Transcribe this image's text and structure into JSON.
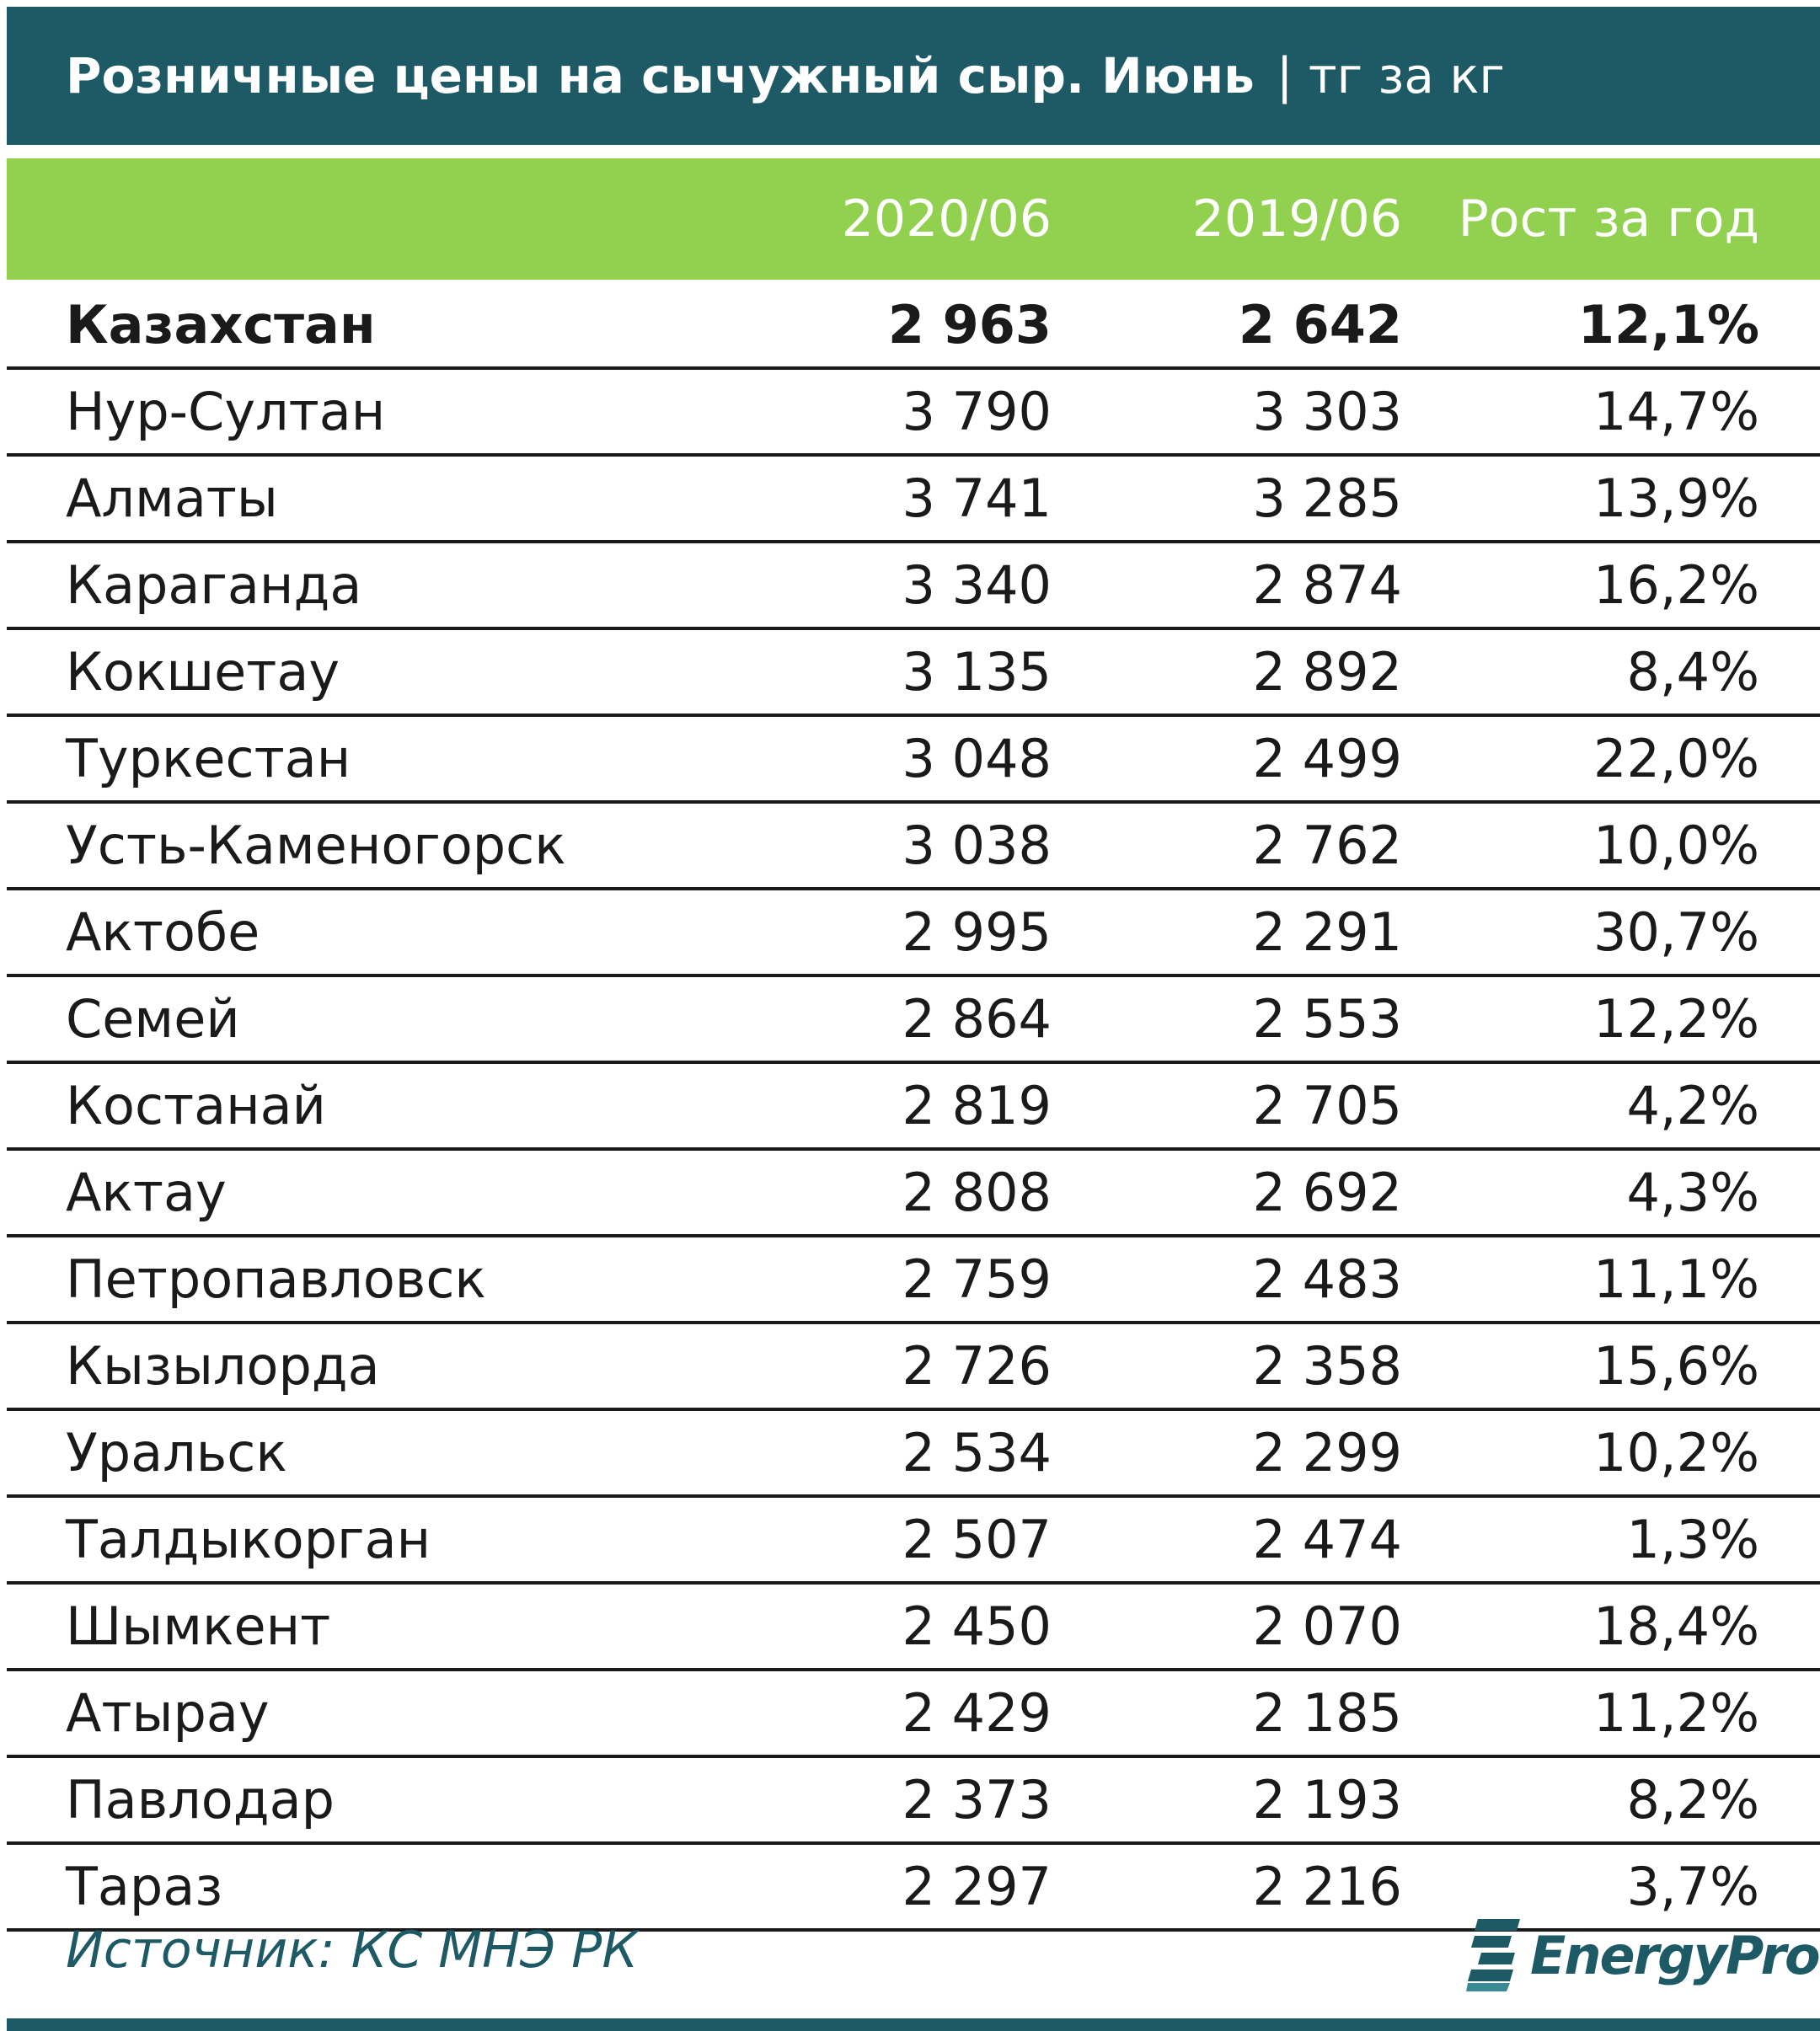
{
  "title": {
    "main": "Розничные цены на сычужный сыр. Июнь",
    "unit": "| тг за кг"
  },
  "colors": {
    "title_bg": "#1e5a66",
    "header_bg": "#92d050",
    "header_text": "#ffffff",
    "source_text": "#1e5a66"
  },
  "chart_data": {
    "type": "table",
    "columns": [
      "",
      "2020/06",
      "2019/06",
      "Рост за год"
    ],
    "rows": [
      {
        "name": "Казахстан",
        "v2020": "2 963",
        "v2019": "2 642",
        "growth": "12,1%"
      },
      {
        "name": "Нур-Султан",
        "v2020": "3 790",
        "v2019": "3 303",
        "growth": "14,7%"
      },
      {
        "name": "Алматы",
        "v2020": "3 741",
        "v2019": "3 285",
        "growth": "13,9%"
      },
      {
        "name": "Караганда",
        "v2020": "3 340",
        "v2019": "2 874",
        "growth": "16,2%"
      },
      {
        "name": "Кокшетау",
        "v2020": "3 135",
        "v2019": "2 892",
        "growth": "8,4%"
      },
      {
        "name": "Туркестан",
        "v2020": "3 048",
        "v2019": "2 499",
        "growth": "22,0%"
      },
      {
        "name": "Усть-Каменогорск",
        "v2020": "3 038",
        "v2019": "2 762",
        "growth": "10,0%"
      },
      {
        "name": "Актобе",
        "v2020": "2 995",
        "v2019": "2 291",
        "growth": "30,7%"
      },
      {
        "name": "Семей",
        "v2020": "2 864",
        "v2019": "2 553",
        "growth": "12,2%"
      },
      {
        "name": "Костанай",
        "v2020": "2 819",
        "v2019": "2 705",
        "growth": "4,2%"
      },
      {
        "name": "Актау",
        "v2020": "2 808",
        "v2019": "2 692",
        "growth": "4,3%"
      },
      {
        "name": "Петропавловск",
        "v2020": "2 759",
        "v2019": "2 483",
        "growth": "11,1%"
      },
      {
        "name": "Кызылорда",
        "v2020": "2 726",
        "v2019": "2 358",
        "growth": "15,6%"
      },
      {
        "name": "Уральск",
        "v2020": "2 534",
        "v2019": "2 299",
        "growth": "10,2%"
      },
      {
        "name": "Талдыкорган",
        "v2020": "2 507",
        "v2019": "2 474",
        "growth": "1,3%"
      },
      {
        "name": "Шымкент",
        "v2020": "2 450",
        "v2019": "2 070",
        "growth": "18,4%"
      },
      {
        "name": "Атырау",
        "v2020": "2 429",
        "v2019": "2 185",
        "growth": "11,2%"
      },
      {
        "name": "Павлодар",
        "v2020": "2 373",
        "v2019": "2 193",
        "growth": "8,2%"
      },
      {
        "name": "Тараз",
        "v2020": "2 297",
        "v2019": "2 216",
        "growth": "3,7%"
      }
    ]
  },
  "footer": {
    "source": "Источник: КС МНЭ РК",
    "logo_text": "EnergyProm",
    "logo_icon": "energyprom-logo-icon"
  }
}
